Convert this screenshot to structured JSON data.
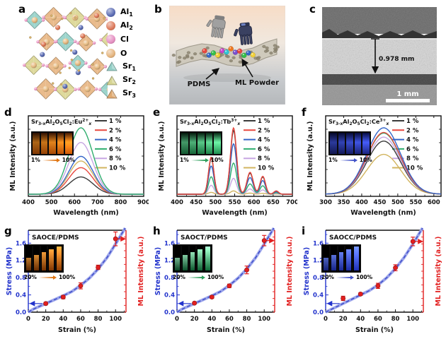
{
  "panels": {
    "a": {
      "letter": "a",
      "legend": [
        {
          "label": "Al",
          "sub": "1",
          "shape": "sphere",
          "color": "#5b6cb4"
        },
        {
          "label": "Al",
          "sub": "2",
          "shape": "sphere",
          "color": "#dd7a5c"
        },
        {
          "label": "Cl",
          "sub": "",
          "shape": "sphere",
          "color": "#e590c2"
        },
        {
          "label": "O",
          "sub": "",
          "shape": "sphere",
          "color": "#e4b47e"
        },
        {
          "label": "Sr",
          "sub": "1",
          "shape": "tetrahedron",
          "color": "#93cfc6"
        },
        {
          "label": "Sr",
          "sub": "2",
          "shape": "tetrahedron",
          "color": "#d6d492"
        },
        {
          "label": "Sr",
          "sub": "3",
          "shape": "tetrahedron",
          "color": "#dfa970"
        }
      ],
      "structure_colors": {
        "poly_teal": "#8fcec5",
        "poly_orange": "#e6b27c",
        "poly_khaki": "#d9d48e",
        "sphere_o": "#e8bd85",
        "sphere_cl": "#ef9cc8",
        "sphere_al1": "#5b6cb4",
        "sphere_al2": "#e07a58",
        "dot_gold": "#d9b36a"
      }
    },
    "b": {
      "letter": "b",
      "label_pdms": "PDMS",
      "label_ml_powder": "ML Powder",
      "powder_colors": [
        "#e8483f",
        "#3668c9",
        "#35c04a",
        "#f3d23a",
        "#cc44cc",
        "#2fc7d6",
        "#f07820",
        "#7a4fd0",
        "#e8483f",
        "#35c04a",
        "#3668c9",
        "#f3d23a"
      ]
    },
    "c": {
      "letter": "c",
      "thickness_label": "0.978 mm",
      "scale_label": "1 mm"
    },
    "d": {
      "letter": "d"
    },
    "e": {
      "letter": "e"
    },
    "f": {
      "letter": "f"
    },
    "g": {
      "letter": "g"
    },
    "h": {
      "letter": "h"
    },
    "i": {
      "letter": "i"
    }
  },
  "inset_families": {
    "orange": {
      "arrow": "#e07614",
      "bright": [
        "#3a1402",
        "#f08c1e",
        "#b24e06"
      ],
      "fill": [
        "#7a3402",
        "#ffa43c"
      ]
    },
    "green": {
      "arrow": "#2e9e5b",
      "bright": [
        "#04200f",
        "#5ed490",
        "#1b7a44"
      ],
      "fill": [
        "#0d5c30",
        "#9af0c0"
      ]
    },
    "blue": {
      "arrow": "#4152c8",
      "bright": [
        "#060a38",
        "#3c50d8",
        "#18206e"
      ],
      "fill": [
        "#1a2a9e",
        "#6a86ff"
      ]
    }
  },
  "chart_data": [
    {
      "id": "d",
      "type": "line",
      "panel": "d",
      "title_plain": "Sr3-xAl2O5Cl2:Eu2+x",
      "title_segments": [
        {
          "t": "Sr"
        },
        {
          "t": "3-x",
          "s": "sub"
        },
        {
          "t": "Al"
        },
        {
          "t": "2",
          "s": "sub"
        },
        {
          "t": "O"
        },
        {
          "t": "5",
          "s": "sub"
        },
        {
          "t": "Cl"
        },
        {
          "t": "2",
          "s": "sub"
        },
        {
          "t": ":Eu"
        },
        {
          "t": "2+",
          "s": "sup"
        },
        {
          "t": "x",
          "s": "sub"
        }
      ],
      "xlabel": "Wavelength (nm)",
      "ylabel": "ML Intensity (a.u.)",
      "xlim": [
        400,
        900
      ],
      "xticks": [
        400,
        500,
        600,
        700,
        800,
        900
      ],
      "ylim": [
        0,
        1
      ],
      "peaks": [
        [
          628,
          52,
          1.0
        ]
      ],
      "series": [
        {
          "name": "1 %",
          "color": "#3a3a3a",
          "scale": 0.26
        },
        {
          "name": "2 %",
          "color": "#e8473e",
          "scale": 0.4
        },
        {
          "name": "4 %",
          "color": "#3465c8",
          "scale": 0.57
        },
        {
          "name": "6 %",
          "color": "#2fae6e",
          "scale": 1.0
        },
        {
          "name": "8 %",
          "color": "#c7a6e2",
          "scale": 0.78
        },
        {
          "name": "10 %",
          "color": "#d2b560",
          "scale": 0.5
        }
      ],
      "inset": {
        "start_label": "1%",
        "end_label": "10%",
        "family": "orange"
      }
    },
    {
      "id": "e",
      "type": "line",
      "panel": "e",
      "title_plain": "Sr3-xAl2O5Cl2:Tb3+x",
      "title_segments": [
        {
          "t": "Sr"
        },
        {
          "t": "3-x",
          "s": "sub"
        },
        {
          "t": "Al"
        },
        {
          "t": "2",
          "s": "sub"
        },
        {
          "t": "O"
        },
        {
          "t": "5",
          "s": "sub"
        },
        {
          "t": "Cl"
        },
        {
          "t": "2",
          "s": "sub"
        },
        {
          "t": ":Tb"
        },
        {
          "t": "3+",
          "s": "sup"
        },
        {
          "t": "x",
          "s": "sub"
        }
      ],
      "xlabel": "Wavelength (nm)",
      "ylabel": "ML Intensity (a.u.)",
      "xlim": [
        400,
        700
      ],
      "xticks": [
        400,
        450,
        500,
        550,
        600,
        650,
        700
      ],
      "ylim": [
        0,
        1
      ],
      "peaks": [
        [
          489,
          7,
          0.56
        ],
        [
          547,
          8,
          1.0
        ],
        [
          590,
          8,
          0.33
        ],
        [
          623,
          7,
          0.27
        ],
        [
          658,
          6,
          0.05
        ]
      ],
      "series": [
        {
          "name": "1 %",
          "color": "#3a3a3a",
          "scale": 0.96
        },
        {
          "name": "2 %",
          "color": "#e8473e",
          "scale": 1.0
        },
        {
          "name": "4 %",
          "color": "#3465c8",
          "scale": 0.76
        },
        {
          "name": "6 %",
          "color": "#2fae6e",
          "scale": 0.47
        },
        {
          "name": "8 %",
          "color": "#c7a6e2",
          "scale": 0.24
        },
        {
          "name": "10 %",
          "color": "#d2b560",
          "scale": 0.05
        }
      ],
      "inset": {
        "start_label": "1%",
        "end_label": "10%",
        "family": "green"
      }
    },
    {
      "id": "f",
      "type": "line",
      "panel": "f",
      "title_plain": "Sr3-xAl2O5Cl2:Ce3+x",
      "title_segments": [
        {
          "t": "Sr"
        },
        {
          "t": "3-x",
          "s": "sub"
        },
        {
          "t": "Al"
        },
        {
          "t": "2",
          "s": "sub"
        },
        {
          "t": "O"
        },
        {
          "t": "5",
          "s": "sub"
        },
        {
          "t": "Cl"
        },
        {
          "t": "2",
          "s": "sub"
        },
        {
          "t": ":Ce"
        },
        {
          "t": "3+",
          "s": "sup"
        },
        {
          "t": "x",
          "s": "sub"
        }
      ],
      "xlabel": "Wavelength (nm)",
      "ylabel": "ML Intensity (a.u.)",
      "xlim": [
        300,
        620
      ],
      "xticks": [
        300,
        350,
        400,
        450,
        500,
        550,
        600
      ],
      "ylim": [
        0,
        1
      ],
      "peaks": [
        [
          461,
          47,
          1.0
        ]
      ],
      "series": [
        {
          "name": "1 %",
          "color": "#3a3a3a",
          "scale": 0.8
        },
        {
          "name": "2 %",
          "color": "#e8473e",
          "scale": 0.93
        },
        {
          "name": "4 %",
          "color": "#3465c8",
          "scale": 1.0
        },
        {
          "name": "6 %",
          "color": "#2fae6e",
          "scale": 0.92
        },
        {
          "name": "8 %",
          "color": "#c7a6e2",
          "scale": 0.86
        },
        {
          "name": "10 %",
          "color": "#d2b560",
          "scale": 0.6
        }
      ],
      "inset": {
        "start_label": "1%",
        "end_label": "10%",
        "family": "blue"
      }
    },
    {
      "id": "g",
      "type": "line+scatter",
      "panel": "g",
      "title": "SAOCE/PDMS",
      "xlabel": "Strain (%)",
      "ylabel_left": "Stress (MPa)",
      "ylabel_right": "ML Intensity (a.u.)",
      "xlim": [
        0,
        112
      ],
      "ylim": [
        0,
        1.9
      ],
      "xticks": [
        0,
        20,
        40,
        60,
        80,
        100
      ],
      "yticks": [
        0.0,
        0.4,
        0.8,
        1.2,
        1.6
      ],
      "axis_colors": {
        "stress": "#2233cc",
        "ml": "#e21f1f"
      },
      "stress_curve": [
        [
          0,
          0
        ],
        [
          5,
          0.06
        ],
        [
          10,
          0.11
        ],
        [
          20,
          0.2
        ],
        [
          30,
          0.29
        ],
        [
          40,
          0.38
        ],
        [
          50,
          0.48
        ],
        [
          60,
          0.62
        ],
        [
          70,
          0.79
        ],
        [
          80,
          1.0
        ],
        [
          90,
          1.26
        ],
        [
          100,
          1.58
        ],
        [
          106,
          1.78
        ],
        [
          111,
          1.95
        ]
      ],
      "ml_points": [
        [
          20,
          0.2,
          0.03
        ],
        [
          40,
          0.35,
          0.04
        ],
        [
          60,
          0.61,
          0.07
        ],
        [
          80,
          1.04,
          0.05
        ],
        [
          100,
          1.7,
          0.16
        ]
      ],
      "inset": {
        "start_label": "20%",
        "end_label": "100%",
        "family": "orange"
      }
    },
    {
      "id": "h",
      "type": "line+scatter",
      "panel": "h",
      "title": "SAOCT/PDMS",
      "xlabel": "Strain (%)",
      "ylabel_left": "Stress (MPa)",
      "ylabel_right": "ML Intensity (a.u.)",
      "xlim": [
        0,
        112
      ],
      "ylim": [
        0,
        1.9
      ],
      "xticks": [
        0,
        20,
        40,
        60,
        80,
        100
      ],
      "yticks": [
        0.0,
        0.4,
        0.8,
        1.2,
        1.6
      ],
      "axis_colors": {
        "stress": "#2233cc",
        "ml": "#e21f1f"
      },
      "stress_curve": [
        [
          0,
          0
        ],
        [
          5,
          0.06
        ],
        [
          10,
          0.11
        ],
        [
          20,
          0.2
        ],
        [
          30,
          0.29
        ],
        [
          40,
          0.38
        ],
        [
          50,
          0.48
        ],
        [
          60,
          0.62
        ],
        [
          70,
          0.79
        ],
        [
          80,
          1.0
        ],
        [
          90,
          1.26
        ],
        [
          100,
          1.58
        ],
        [
          106,
          1.78
        ],
        [
          111,
          1.95
        ]
      ],
      "ml_points": [
        [
          20,
          0.21,
          0.02
        ],
        [
          40,
          0.35,
          0.03
        ],
        [
          60,
          0.61,
          0.04
        ],
        [
          80,
          0.98,
          0.09
        ],
        [
          100,
          1.66,
          0.12
        ]
      ],
      "inset": {
        "start_label": "20%",
        "end_label": "100%",
        "family": "green"
      }
    },
    {
      "id": "i",
      "type": "line+scatter",
      "panel": "i",
      "title": "SAOCC/PDMS",
      "xlabel": "Strain (%)",
      "ylabel_left": "Stress (MPa)",
      "ylabel_right": "ML Intensity (a.u.)",
      "xlim": [
        0,
        112
      ],
      "ylim": [
        0,
        1.9
      ],
      "xticks": [
        0,
        20,
        40,
        60,
        80,
        100
      ],
      "yticks": [
        0.0,
        0.4,
        0.8,
        1.2,
        1.6
      ],
      "axis_colors": {
        "stress": "#2233cc",
        "ml": "#e21f1f"
      },
      "stress_curve": [
        [
          0,
          0
        ],
        [
          5,
          0.05
        ],
        [
          10,
          0.1
        ],
        [
          20,
          0.2
        ],
        [
          30,
          0.3
        ],
        [
          40,
          0.4
        ],
        [
          50,
          0.5
        ],
        [
          60,
          0.63
        ],
        [
          70,
          0.8
        ],
        [
          80,
          1.01
        ],
        [
          90,
          1.27
        ],
        [
          100,
          1.58
        ],
        [
          106,
          1.78
        ],
        [
          111,
          1.95
        ]
      ],
      "ml_points": [
        [
          20,
          0.32,
          0.05
        ],
        [
          40,
          0.42,
          0.03
        ],
        [
          60,
          0.61,
          0.06
        ],
        [
          80,
          1.03,
          0.07
        ],
        [
          100,
          1.64,
          0.1
        ]
      ],
      "inset": {
        "start_label": "20%",
        "end_label": "100%",
        "family": "blue"
      }
    }
  ]
}
